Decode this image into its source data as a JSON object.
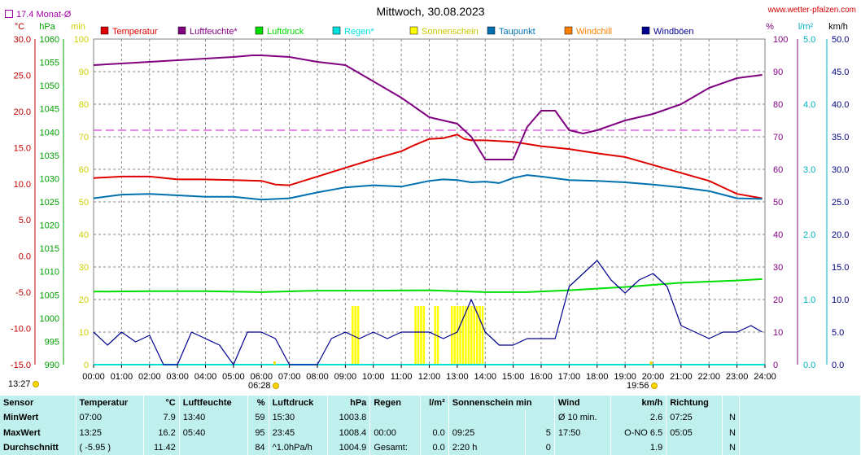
{
  "header": {
    "title": "Mittwoch, 30.08.2023",
    "site": "www.wetter-pfalzen.com",
    "monat_label": "17.4 Monat-Ø"
  },
  "axes": {
    "temp_unit": "°C",
    "hpa_unit": "hPa",
    "min_unit": "min",
    "pct_unit": "%",
    "rain_unit": "l/m²",
    "wind_unit": "km/h",
    "temp_ticks": [
      "30.0",
      "25.0",
      "20.0",
      "15.0",
      "10.0",
      "5.0",
      "0.0",
      "-5.0",
      "-10.0",
      "-15.0"
    ],
    "hpa_ticks": [
      "1060",
      "1055",
      "1050",
      "1045",
      "1040",
      "1035",
      "1030",
      "1025",
      "1020",
      "1015",
      "1010",
      "1005",
      "1000",
      "995",
      "990"
    ],
    "min_ticks": [
      "100",
      "90",
      "80",
      "70",
      "60",
      "50",
      "40",
      "30",
      "20",
      "10",
      "0"
    ],
    "pct_ticks": [
      "100",
      "90",
      "80",
      "70",
      "60",
      "50",
      "40",
      "30",
      "20",
      "10",
      "0"
    ],
    "rain_ticks": [
      "5.0",
      "4.0",
      "3.0",
      "2.0",
      "1.0",
      "0.0"
    ],
    "wind_ticks": [
      "50.0",
      "45.0",
      "40.0",
      "35.0",
      "30.0",
      "25.0",
      "20.0",
      "15.0",
      "10.0",
      "5.0",
      "0.0"
    ],
    "x_ticks": [
      "00:00",
      "01:00",
      "02:00",
      "03:00",
      "04:00",
      "05:00",
      "06:00",
      "07:00",
      "08:00",
      "09:00",
      "10:00",
      "11:00",
      "12:00",
      "13:00",
      "14:00",
      "15:00",
      "16:00",
      "17:00",
      "18:00",
      "19:00",
      "20:00",
      "21:00",
      "22:00",
      "23:00",
      "24:00"
    ]
  },
  "legend": [
    {
      "name": "Temperatur",
      "color": "#e00000"
    },
    {
      "name": "Luftfeuchte*",
      "color": "#800080"
    },
    {
      "name": "Luftdruck",
      "color": "#00dd00"
    },
    {
      "name": "Regen*",
      "color": "#00e0e0"
    },
    {
      "name": "Sonnenschein",
      "color": "#ffff00"
    },
    {
      "name": "Taupunkt",
      "color": "#0070b0"
    },
    {
      "name": "Windchill",
      "color": "#ff8000"
    },
    {
      "name": "Windböen",
      "color": "#000090"
    }
  ],
  "annotations": {
    "time_left": "13:27",
    "sunrise": "06:28",
    "sunset": "19:56"
  },
  "chart_data": {
    "type": "line",
    "title": "Mittwoch, 30.08.2023",
    "x_range_hours": [
      0,
      24
    ],
    "reference_lines": [
      {
        "label": "17.4 Monat-Ø",
        "axis": "temperature",
        "value": 17.4
      }
    ],
    "series": [
      {
        "name": "Temperatur",
        "axis": "°C",
        "color": "#e00000",
        "x": [
          0,
          1,
          2,
          3,
          4,
          5,
          6,
          6.5,
          7,
          8,
          9,
          10,
          11,
          11.5,
          12,
          12.5,
          13,
          13.25,
          13.5,
          14,
          15,
          16,
          17,
          18,
          19,
          20,
          21,
          22,
          23,
          23.9
        ],
        "values": [
          10.8,
          11.0,
          11.0,
          10.6,
          10.6,
          10.5,
          10.4,
          9.9,
          9.8,
          11.0,
          12.2,
          13.4,
          14.5,
          15.4,
          16.2,
          16.3,
          16.8,
          16.2,
          16.0,
          16.0,
          15.8,
          15.2,
          14.8,
          14.2,
          13.7,
          12.6,
          11.5,
          10.4,
          8.6,
          8.0
        ]
      },
      {
        "name": "Luftfeuchte*",
        "axis": "%",
        "color": "#800080",
        "x": [
          0,
          1,
          2,
          3,
          4,
          5,
          5.67,
          6,
          7,
          8,
          9,
          10,
          11,
          12,
          12.5,
          13,
          13.5,
          14,
          14.5,
          15,
          15.5,
          16,
          16.5,
          17,
          17.5,
          18,
          19,
          20,
          21,
          22,
          23,
          23.9
        ],
        "values": [
          92,
          92.5,
          93,
          93.5,
          94,
          94.5,
          95,
          95,
          94.5,
          93,
          92,
          87,
          82,
          76,
          75,
          74,
          70,
          63,
          63,
          63,
          73,
          78,
          78,
          72,
          71,
          72,
          75,
          77,
          80,
          85,
          88,
          89
        ]
      },
      {
        "name": "Luftdruck",
        "axis": "hPa",
        "color": "#00dd00",
        "x": [
          0,
          2,
          4,
          6,
          8,
          10,
          12,
          14,
          15.5,
          17,
          19,
          21,
          23,
          23.9
        ],
        "values": [
          1005.7,
          1005.8,
          1005.8,
          1005.6,
          1005.9,
          1005.9,
          1006.0,
          1005.6,
          1005.6,
          1006.0,
          1006.7,
          1007.6,
          1008.1,
          1008.4
        ]
      },
      {
        "name": "Regen*",
        "axis": "l/m²",
        "color": "#00e0e0",
        "x": [
          0,
          24
        ],
        "values": [
          0,
          0
        ]
      },
      {
        "name": "Taupunkt",
        "axis": "°C",
        "color": "#0070b0",
        "x": [
          0,
          1,
          2,
          3,
          4,
          5,
          6,
          7,
          8,
          9,
          10,
          11,
          12,
          12.5,
          13,
          13.5,
          14,
          14.5,
          15,
          15.5,
          16,
          17,
          18,
          19,
          20,
          21,
          22,
          23,
          23.9
        ],
        "values": [
          8.0,
          8.5,
          8.6,
          8.4,
          8.2,
          8.2,
          7.8,
          8.0,
          8.8,
          9.5,
          9.8,
          9.6,
          10.4,
          10.6,
          10.5,
          10.2,
          10.3,
          10.1,
          10.8,
          11.2,
          11.0,
          10.5,
          10.4,
          10.2,
          9.9,
          9.5,
          9.0,
          8.0,
          7.9
        ]
      },
      {
        "name": "Windböen",
        "axis": "km/h",
        "color": "#000090",
        "x": [
          0,
          0.5,
          1,
          1.5,
          2,
          2.5,
          3,
          3.5,
          4,
          4.5,
          5,
          5.5,
          6,
          6.5,
          7,
          7.5,
          8,
          8.5,
          9,
          9.5,
          10,
          10.5,
          11,
          11.5,
          12,
          12.5,
          13,
          13.5,
          14,
          14.5,
          15,
          15.5,
          16,
          16.5,
          17,
          17.5,
          18,
          18.5,
          19,
          19.5,
          20,
          20.5,
          21,
          21.5,
          22,
          22.5,
          23,
          23.5,
          23.9
        ],
        "values": [
          5.0,
          3.0,
          5.0,
          3.5,
          4.5,
          0,
          0,
          5.0,
          4.0,
          3.0,
          0,
          5.0,
          5.0,
          4.0,
          0,
          0,
          0,
          4.0,
          5.0,
          4.0,
          5.0,
          4.0,
          5.0,
          5.0,
          5.0,
          4.0,
          5.0,
          10.0,
          5.0,
          3.0,
          3.0,
          4.0,
          4.0,
          4.0,
          12.0,
          14.0,
          16.0,
          13.0,
          11.0,
          13.0,
          14.0,
          12.0,
          6.0,
          5.0,
          4.0,
          5.0,
          5.0,
          6.0,
          5.0
        ]
      }
    ],
    "sunshine_minutes": {
      "name": "Sonnenschein",
      "axis": "min",
      "color": "#ffff00",
      "x": [
        9.25,
        9.35,
        9.45,
        11.5,
        11.6,
        11.7,
        11.8,
        12.2,
        12.3,
        12.8,
        12.9,
        13.0,
        13.1,
        13.2,
        13.3,
        13.4,
        13.5,
        13.6,
        13.7,
        13.8,
        13.9
      ],
      "values": [
        5,
        5,
        5,
        5,
        5,
        5,
        5,
        5,
        5,
        5,
        5,
        5,
        5,
        5,
        5,
        5,
        5,
        5,
        5,
        5,
        5
      ]
    }
  },
  "stats": {
    "headers": {
      "sensor": "Sensor",
      "temp": "Temperatur",
      "temp_unit": "°C",
      "hum": "Luftfeuchte",
      "hum_unit": "%",
      "press": "Luftdruck",
      "press_unit": "hPa",
      "rain": "Regen",
      "rain_unit": "l/m²",
      "sun": "Sonnenschein min",
      "wind": "Wind",
      "wind_unit": "km/h",
      "dir": "Richtung"
    },
    "rows": [
      {
        "label": "MinWert",
        "temp_t": "07:00",
        "temp_v": "7.9",
        "hum_t": "13:40",
        "hum_v": "59",
        "press_t": "15:30",
        "press_v": "1003.8",
        "rain_t": "",
        "rain_v": "",
        "sun_t": "",
        "sun_v": "",
        "wind_t": "Ø 10 min.",
        "wind_v": "2.6",
        "dir_t": "07:25",
        "dir_v": "N"
      },
      {
        "label": "MaxWert",
        "temp_t": "13:25",
        "temp_v": "16.2",
        "hum_t": "05:40",
        "hum_v": "95",
        "press_t": "23:45",
        "press_v": "1008.4",
        "rain_t": "00:00",
        "rain_v": "0.0",
        "sun_t": "09:25",
        "sun_v": "5",
        "wind_t": "17:50",
        "wind_v": "O-NO 6.5",
        "dir_t": "05:05",
        "dir_v": "N"
      },
      {
        "label": "Durchschnitt",
        "temp_t": "( -5.95 )",
        "temp_v": "11.42",
        "hum_t": "",
        "hum_v": "84",
        "press_t": "^1.0hPa/h",
        "press_v": "1004.9",
        "rain_t": "Gesamt:",
        "rain_v": "0.0",
        "sun_t": "2:20 h",
        "sun_v": "0",
        "wind_t": "",
        "wind_v": "1.9",
        "dir_t": "",
        "dir_v": "N"
      }
    ]
  }
}
